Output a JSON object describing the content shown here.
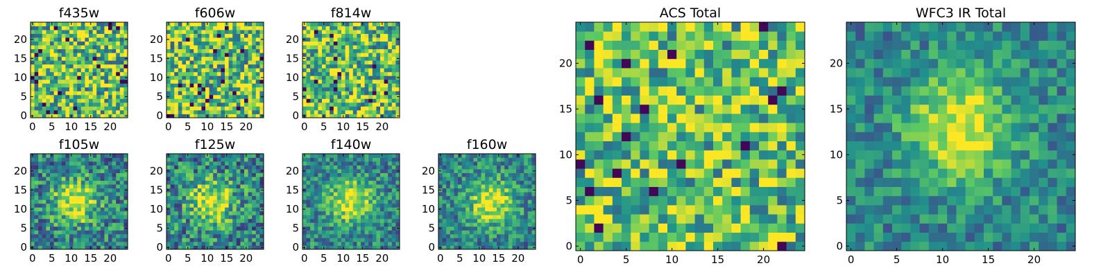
{
  "figure": {
    "colormap": "viridis",
    "colormap_stops": [
      "#440154",
      "#3b528b",
      "#21918c",
      "#5ec962",
      "#fde725"
    ]
  },
  "chart_data": [
    {
      "type": "heatmap",
      "title": "f435w",
      "grid_size": 25,
      "xlim": [
        0,
        24
      ],
      "ylim": [
        0,
        24
      ],
      "xticks": [
        "0",
        "5",
        "10",
        "15",
        "20"
      ],
      "yticks": [
        "0",
        "5",
        "10",
        "15",
        "20"
      ],
      "peak": null,
      "noise_level": 0.85
    },
    {
      "type": "heatmap",
      "title": "f606w",
      "grid_size": 25,
      "xlim": [
        0,
        24
      ],
      "ylim": [
        0,
        24
      ],
      "xticks": [
        "0",
        "5",
        "10",
        "15",
        "20"
      ],
      "yticks": [
        "0",
        "5",
        "10",
        "15",
        "20"
      ],
      "peak": null,
      "noise_level": 0.85
    },
    {
      "type": "heatmap",
      "title": "f814w",
      "grid_size": 25,
      "xlim": [
        0,
        24
      ],
      "ylim": [
        0,
        24
      ],
      "xticks": [
        "0",
        "5",
        "10",
        "15",
        "20"
      ],
      "yticks": [
        "0",
        "5",
        "10",
        "15",
        "20"
      ],
      "peak": null,
      "noise_level": 0.85
    },
    {
      "type": "heatmap",
      "title": "f105w",
      "grid_size": 25,
      "xlim": [
        0,
        24
      ],
      "ylim": [
        0,
        24
      ],
      "xticks": [
        "0",
        "5",
        "10",
        "15",
        "20"
      ],
      "yticks": [
        "0",
        "5",
        "10",
        "15",
        "20"
      ],
      "peak": [
        11,
        12
      ],
      "noise_level": 0.6
    },
    {
      "type": "heatmap",
      "title": "f125w",
      "grid_size": 25,
      "xlim": [
        0,
        24
      ],
      "ylim": [
        0,
        24
      ],
      "xticks": [
        "0",
        "5",
        "10",
        "15",
        "20"
      ],
      "yticks": [
        "0",
        "5",
        "10",
        "15",
        "20"
      ],
      "peak": [
        11,
        12
      ],
      "noise_level": 0.65
    },
    {
      "type": "heatmap",
      "title": "f140w",
      "grid_size": 25,
      "xlim": [
        0,
        24
      ],
      "ylim": [
        0,
        24
      ],
      "xticks": [
        "0",
        "5",
        "10",
        "15",
        "20"
      ],
      "yticks": [
        "0",
        "5",
        "10",
        "15",
        "20"
      ],
      "peak": [
        12,
        12
      ],
      "noise_level": 0.5
    },
    {
      "type": "heatmap",
      "title": "f160w",
      "grid_size": 25,
      "xlim": [
        0,
        24
      ],
      "ylim": [
        0,
        24
      ],
      "xticks": [
        "0",
        "5",
        "10",
        "15",
        "20"
      ],
      "yticks": [
        "0",
        "5",
        "10",
        "15",
        "20"
      ],
      "peak": [
        13,
        12
      ],
      "noise_level": 0.5
    },
    {
      "type": "heatmap",
      "title": "ACS Total",
      "grid_size": 25,
      "xlim": [
        0,
        24
      ],
      "ylim": [
        0,
        24
      ],
      "xticks": [
        "0",
        "5",
        "10",
        "15",
        "20"
      ],
      "yticks": [
        "0",
        "5",
        "10",
        "15",
        "20"
      ],
      "peak": null,
      "noise_level": 0.75
    },
    {
      "type": "heatmap",
      "title": "WFC3 IR Total",
      "grid_size": 25,
      "xlim": [
        0,
        24
      ],
      "ylim": [
        0,
        24
      ],
      "xticks": [
        "0",
        "5",
        "10",
        "15",
        "20"
      ],
      "yticks": [
        "0",
        "5",
        "10",
        "15",
        "20"
      ],
      "peak": [
        12,
        13
      ],
      "noise_level": 0.4
    }
  ]
}
